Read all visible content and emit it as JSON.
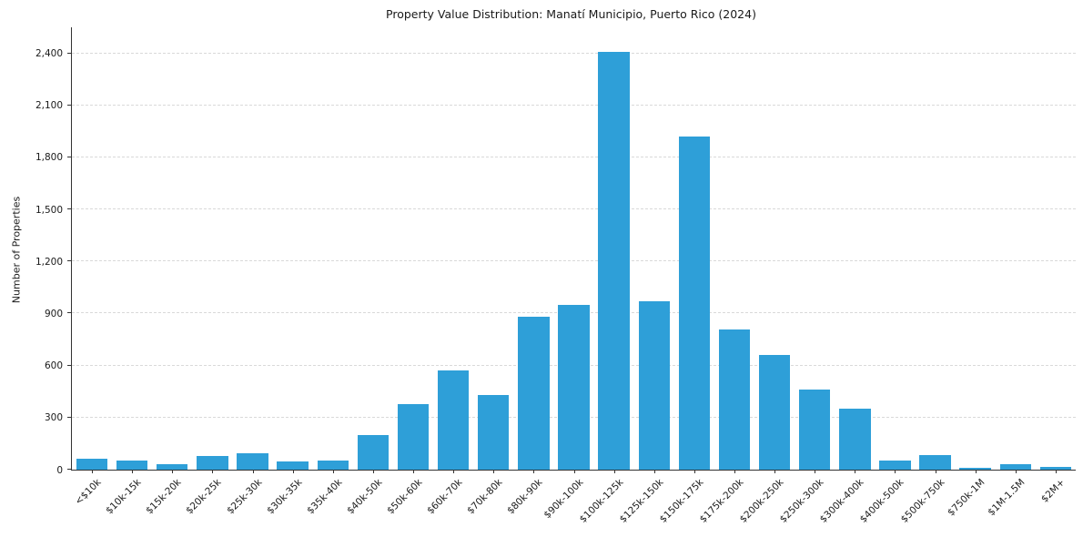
{
  "chart_data": {
    "type": "bar",
    "title": "Property Value Distribution: Manatí Municipio, Puerto Rico (2024)",
    "xlabel": "",
    "ylabel": "Number of Properties",
    "bar_color": "#2e9fd8",
    "grid": "dashed-horizontal",
    "legend": "none",
    "ylim": [
      0,
      2550
    ],
    "ytick_values": [
      0,
      300,
      600,
      900,
      1200,
      1500,
      1800,
      2100,
      2400
    ],
    "ytick_labels": [
      "0",
      "300",
      "600",
      "900",
      "1,200",
      "1,500",
      "1,800",
      "2,100",
      "2,400"
    ],
    "categories": [
      "<$10k",
      "$10k-15k",
      "$15k-20k",
      "$20k-25k",
      "$25k-30k",
      "$30k-35k",
      "$35k-40k",
      "$40k-50k",
      "$50k-60k",
      "$60k-70k",
      "$70k-80k",
      "$80k-90k",
      "$90k-100k",
      "$100k-125k",
      "$125k-150k",
      "$150k-175k",
      "$175k-200k",
      "$200k-250k",
      "$250k-300k",
      "$300k-400k",
      "$400k-500k",
      "$500k-750k",
      "$750k-1M",
      "$1M-1.5M",
      "$2M+"
    ],
    "values": [
      65,
      55,
      30,
      80,
      95,
      45,
      50,
      200,
      380,
      570,
      430,
      880,
      950,
      2410,
      970,
      1920,
      810,
      660,
      460,
      350,
      55,
      85,
      12,
      30,
      15
    ]
  }
}
